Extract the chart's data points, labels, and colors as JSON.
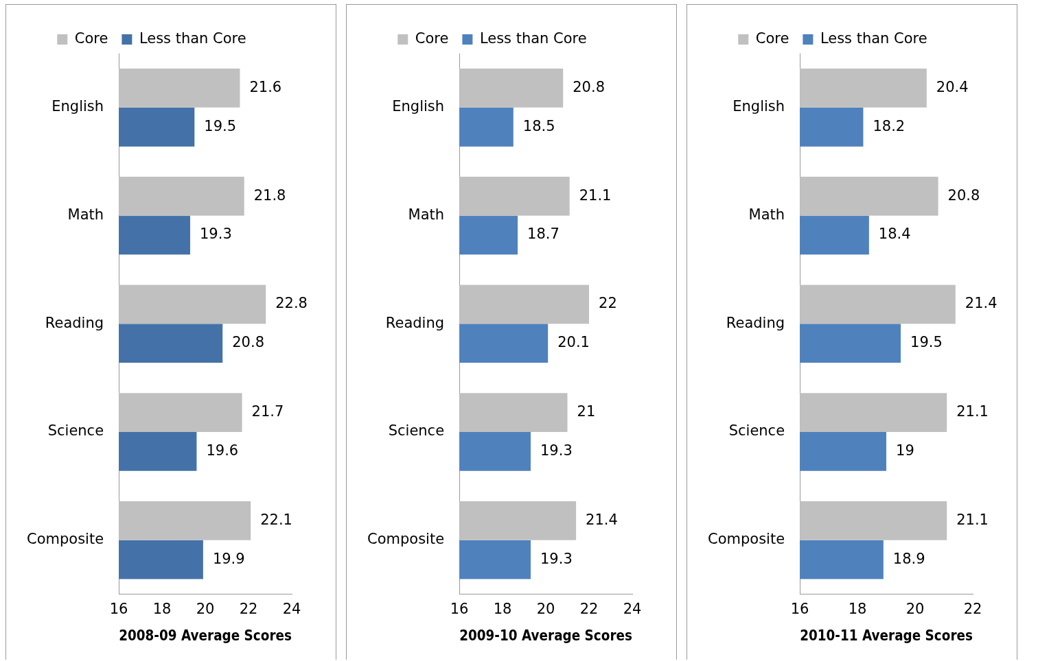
{
  "chart_data": [
    {
      "type": "bar",
      "orientation": "horizontal",
      "xlabel": "2008-09 Average Scores",
      "categories": [
        "English",
        "Math",
        "Reading",
        "Science",
        "Composite"
      ],
      "series": [
        {
          "name": "Core",
          "color": "#c0c0c0",
          "values": [
            21.6,
            21.8,
            22.8,
            21.7,
            22.1
          ]
        },
        {
          "name": "Less than Core",
          "color": "#4472a8",
          "values": [
            19.5,
            19.3,
            20.8,
            19.6,
            19.9
          ]
        }
      ],
      "xlim": [
        16,
        24
      ],
      "xticks": [
        16,
        18,
        20,
        22,
        24
      ],
      "grid": false,
      "legend": "top",
      "data_labels": true
    },
    {
      "type": "bar",
      "orientation": "horizontal",
      "xlabel": "2009-10 Average Scores",
      "categories": [
        "English",
        "Math",
        "Reading",
        "Science",
        "Composite"
      ],
      "series": [
        {
          "name": "Core",
          "color": "#c0c0c0",
          "values": [
            20.8,
            21.1,
            22,
            21,
            21.4
          ]
        },
        {
          "name": "Less than Core",
          "color": "#4f81bd",
          "values": [
            18.5,
            18.7,
            20.1,
            19.3,
            19.3
          ]
        }
      ],
      "xlim": [
        16,
        24
      ],
      "xticks": [
        16,
        18,
        20,
        22,
        24
      ],
      "grid": false,
      "legend": "top",
      "data_labels": true
    },
    {
      "type": "bar",
      "orientation": "horizontal",
      "xlabel": "2010-11 Average Scores",
      "categories": [
        "English",
        "Math",
        "Reading",
        "Science",
        "Composite"
      ],
      "series": [
        {
          "name": "Core",
          "color": "#c0c0c0",
          "values": [
            20.4,
            20.8,
            21.4,
            21.1,
            21.1
          ]
        },
        {
          "name": "Less than Core",
          "color": "#4f81bd",
          "values": [
            18.2,
            18.4,
            19.5,
            19,
            18.9
          ]
        }
      ],
      "xlim": [
        16,
        22
      ],
      "xticks": [
        16,
        18,
        20,
        22
      ],
      "grid": false,
      "legend": "top",
      "data_labels": true
    }
  ]
}
